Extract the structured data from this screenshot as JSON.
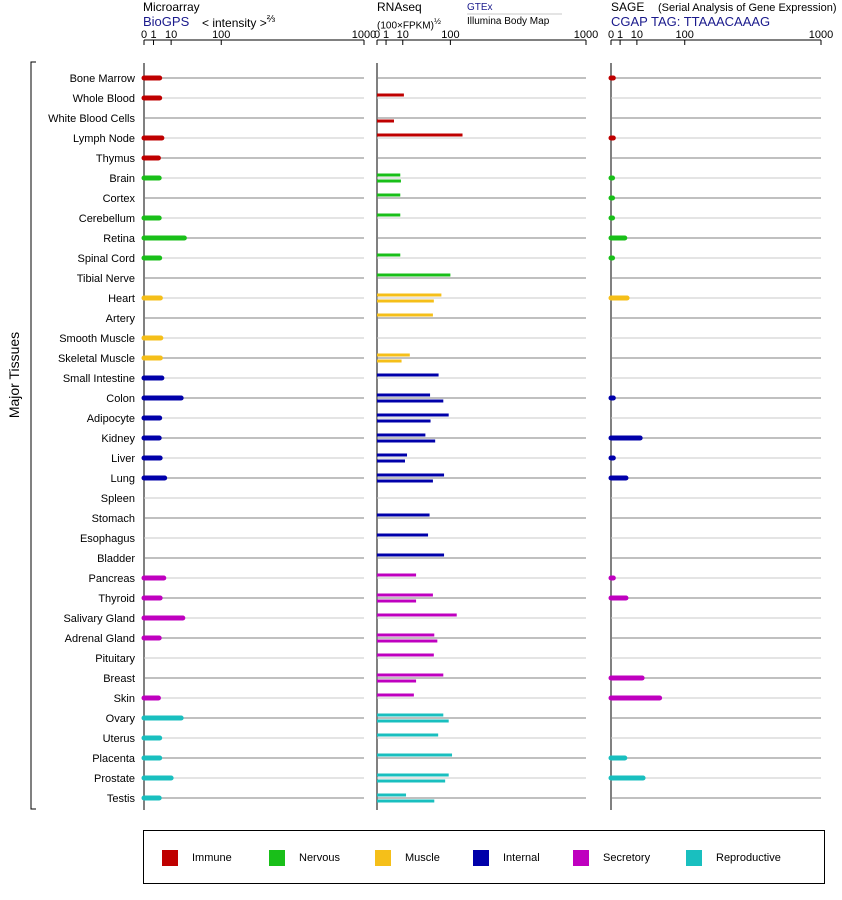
{
  "headers": {
    "micro_title": "Microarray",
    "micro_source": "BioGPS",
    "micro_units": "< intensity >",
    "micro_exp": "⅔",
    "rna_title": "RNAseq",
    "rna_units": "(100×FPKM)",
    "rna_exp": "½",
    "rna_src1": "GTEx",
    "rna_src2": "Illumina Body Map",
    "sage_title": "SAGE",
    "sage_sub": "(Serial Analysis of Gene Expression)",
    "sage_tag": "CGAP TAG: TTAAACAAAG",
    "y_title": "Major Tissues"
  },
  "chart_data": [
    {
      "type": "bar",
      "title": "Microarray",
      "xlabel": "< intensity >⅔",
      "x_ticks": [
        "0",
        "1",
        "10",
        "100",
        "1000"
      ],
      "xlim": [
        0,
        1000
      ],
      "categories": [
        "Bone Marrow",
        "Whole Blood",
        "White Blood Cells",
        "Lymph Node",
        "Thymus",
        "Brain",
        "Cortex",
        "Cerebellum",
        "Retina",
        "Spinal Cord",
        "Tibial Nerve",
        "Heart",
        "Artery",
        "Smooth Muscle",
        "Skeletal Muscle",
        "Small Intestine",
        "Colon",
        "Adipocyte",
        "Kidney",
        "Liver",
        "Lung",
        "Spleen",
        "Stomach",
        "Esophagus",
        "Bladder",
        "Pancreas",
        "Thyroid",
        "Salivary Gland",
        "Adrenal Gland",
        "Pituitary",
        "Breast",
        "Skin",
        "Ovary",
        "Uterus",
        "Placenta",
        "Prostate",
        "Testis"
      ],
      "values": [
        3,
        3,
        null,
        4,
        2.5,
        2.8,
        null,
        2.8,
        24,
        3,
        null,
        3.3,
        null,
        3.5,
        3.3,
        4,
        20,
        3,
        2.8,
        3.2,
        5.5,
        null,
        null,
        null,
        null,
        5,
        3.2,
        22,
        2.8,
        null,
        null,
        2.5,
        20,
        3,
        3,
        10,
        2.8
      ]
    },
    {
      "type": "bar",
      "title": "RNAseq",
      "xlabel": "(100×FPKM)½",
      "x_ticks": [
        "0",
        "1",
        "10",
        "100",
        "1000"
      ],
      "xlim": [
        0,
        1000
      ],
      "series": [
        {
          "name": "GTEx",
          "values": [
            null,
            11,
            null,
            140,
            null,
            8,
            8,
            8,
            null,
            8,
            100,
            75,
            55,
            null,
            17,
            68,
            49,
            95,
            40,
            14,
            82,
            null,
            48,
            45,
            82,
            25,
            55,
            120,
            58,
            57,
            80,
            22,
            80,
            67,
            105,
            95,
            13
          ]
        },
        {
          "name": "Illumina Body Map",
          "values": [
            null,
            null,
            4,
            null,
            null,
            8.5,
            null,
            null,
            null,
            null,
            null,
            57,
            null,
            null,
            9,
            null,
            80,
            50,
            60,
            12,
            55,
            null,
            null,
            null,
            null,
            null,
            25,
            null,
            65,
            null,
            25,
            null,
            95,
            null,
            null,
            85,
            58
          ]
        }
      ]
    },
    {
      "type": "bar",
      "title": "SAGE",
      "xlabel": "(Serial Analysis of Gene Expression)",
      "x_ticks": [
        "0",
        "1",
        "10",
        "100",
        "1000"
      ],
      "xlim": [
        0,
        1000
      ],
      "values": [
        0.05,
        null,
        null,
        0.05,
        null,
        0.02,
        0.02,
        0.02,
        2.5,
        0.02,
        null,
        3.5,
        null,
        null,
        null,
        null,
        0.05,
        null,
        13,
        0.05,
        3,
        null,
        null,
        null,
        null,
        0.05,
        3,
        null,
        null,
        null,
        15,
        40,
        null,
        null,
        2.5,
        16,
        null
      ]
    }
  ],
  "legend": [
    {
      "label": "Immune",
      "color": "#bf0000"
    },
    {
      "label": "Nervous",
      "color": "#19bf19"
    },
    {
      "label": "Muscle",
      "color": "#f5bf19"
    },
    {
      "label": "Internal",
      "color": "#0000aa"
    },
    {
      "label": "Secretory",
      "color": "#bf00bf"
    },
    {
      "label": "Reproductive",
      "color": "#19bfbf"
    }
  ],
  "tissue_groups": [
    0,
    0,
    0,
    0,
    0,
    1,
    1,
    1,
    1,
    1,
    1,
    2,
    2,
    2,
    2,
    3,
    3,
    3,
    3,
    3,
    3,
    3,
    3,
    3,
    3,
    4,
    4,
    4,
    4,
    4,
    4,
    4,
    5,
    5,
    5,
    5,
    5
  ]
}
